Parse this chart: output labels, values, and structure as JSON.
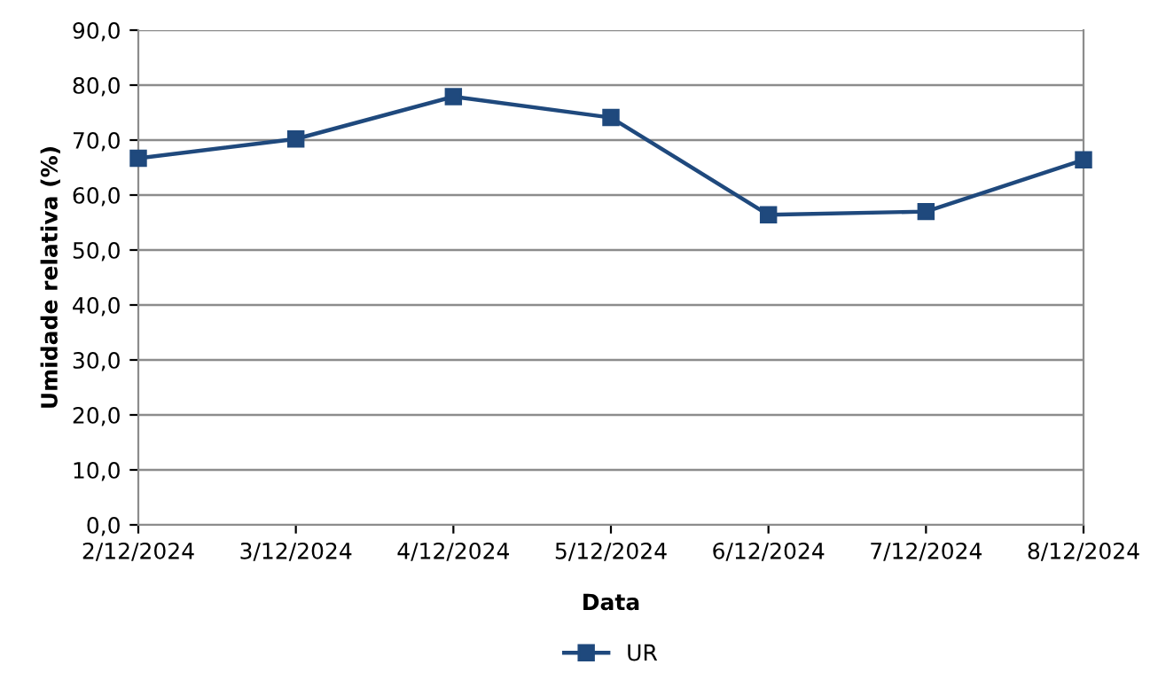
{
  "chart_data": {
    "type": "line",
    "xlabel": "Data",
    "ylabel": "Umidade relativa (%)",
    "categories": [
      "2/12/2024",
      "3/12/2024",
      "4/12/2024",
      "5/12/2024",
      "6/12/2024",
      "7/12/2024",
      "8/12/2024"
    ],
    "series": [
      {
        "name": "UR",
        "color": "#1f497d",
        "values": [
          66.7,
          70.2,
          77.9,
          74.1,
          56.4,
          57.0,
          66.4
        ]
      }
    ],
    "ylim": [
      0,
      90
    ],
    "yticks": [
      {
        "value": 0,
        "label": "0,0"
      },
      {
        "value": 10,
        "label": "10,0"
      },
      {
        "value": 20,
        "label": "20,0"
      },
      {
        "value": 30,
        "label": "30,0"
      },
      {
        "value": 40,
        "label": "40,0"
      },
      {
        "value": 50,
        "label": "50,0"
      },
      {
        "value": 60,
        "label": "60,0"
      },
      {
        "value": 70,
        "label": "70,0"
      },
      {
        "value": 80,
        "label": "80,0"
      },
      {
        "value": 90,
        "label": "90,0"
      }
    ],
    "grid": "y",
    "legend": "bottom",
    "marker": "square",
    "line_style": "solid"
  }
}
